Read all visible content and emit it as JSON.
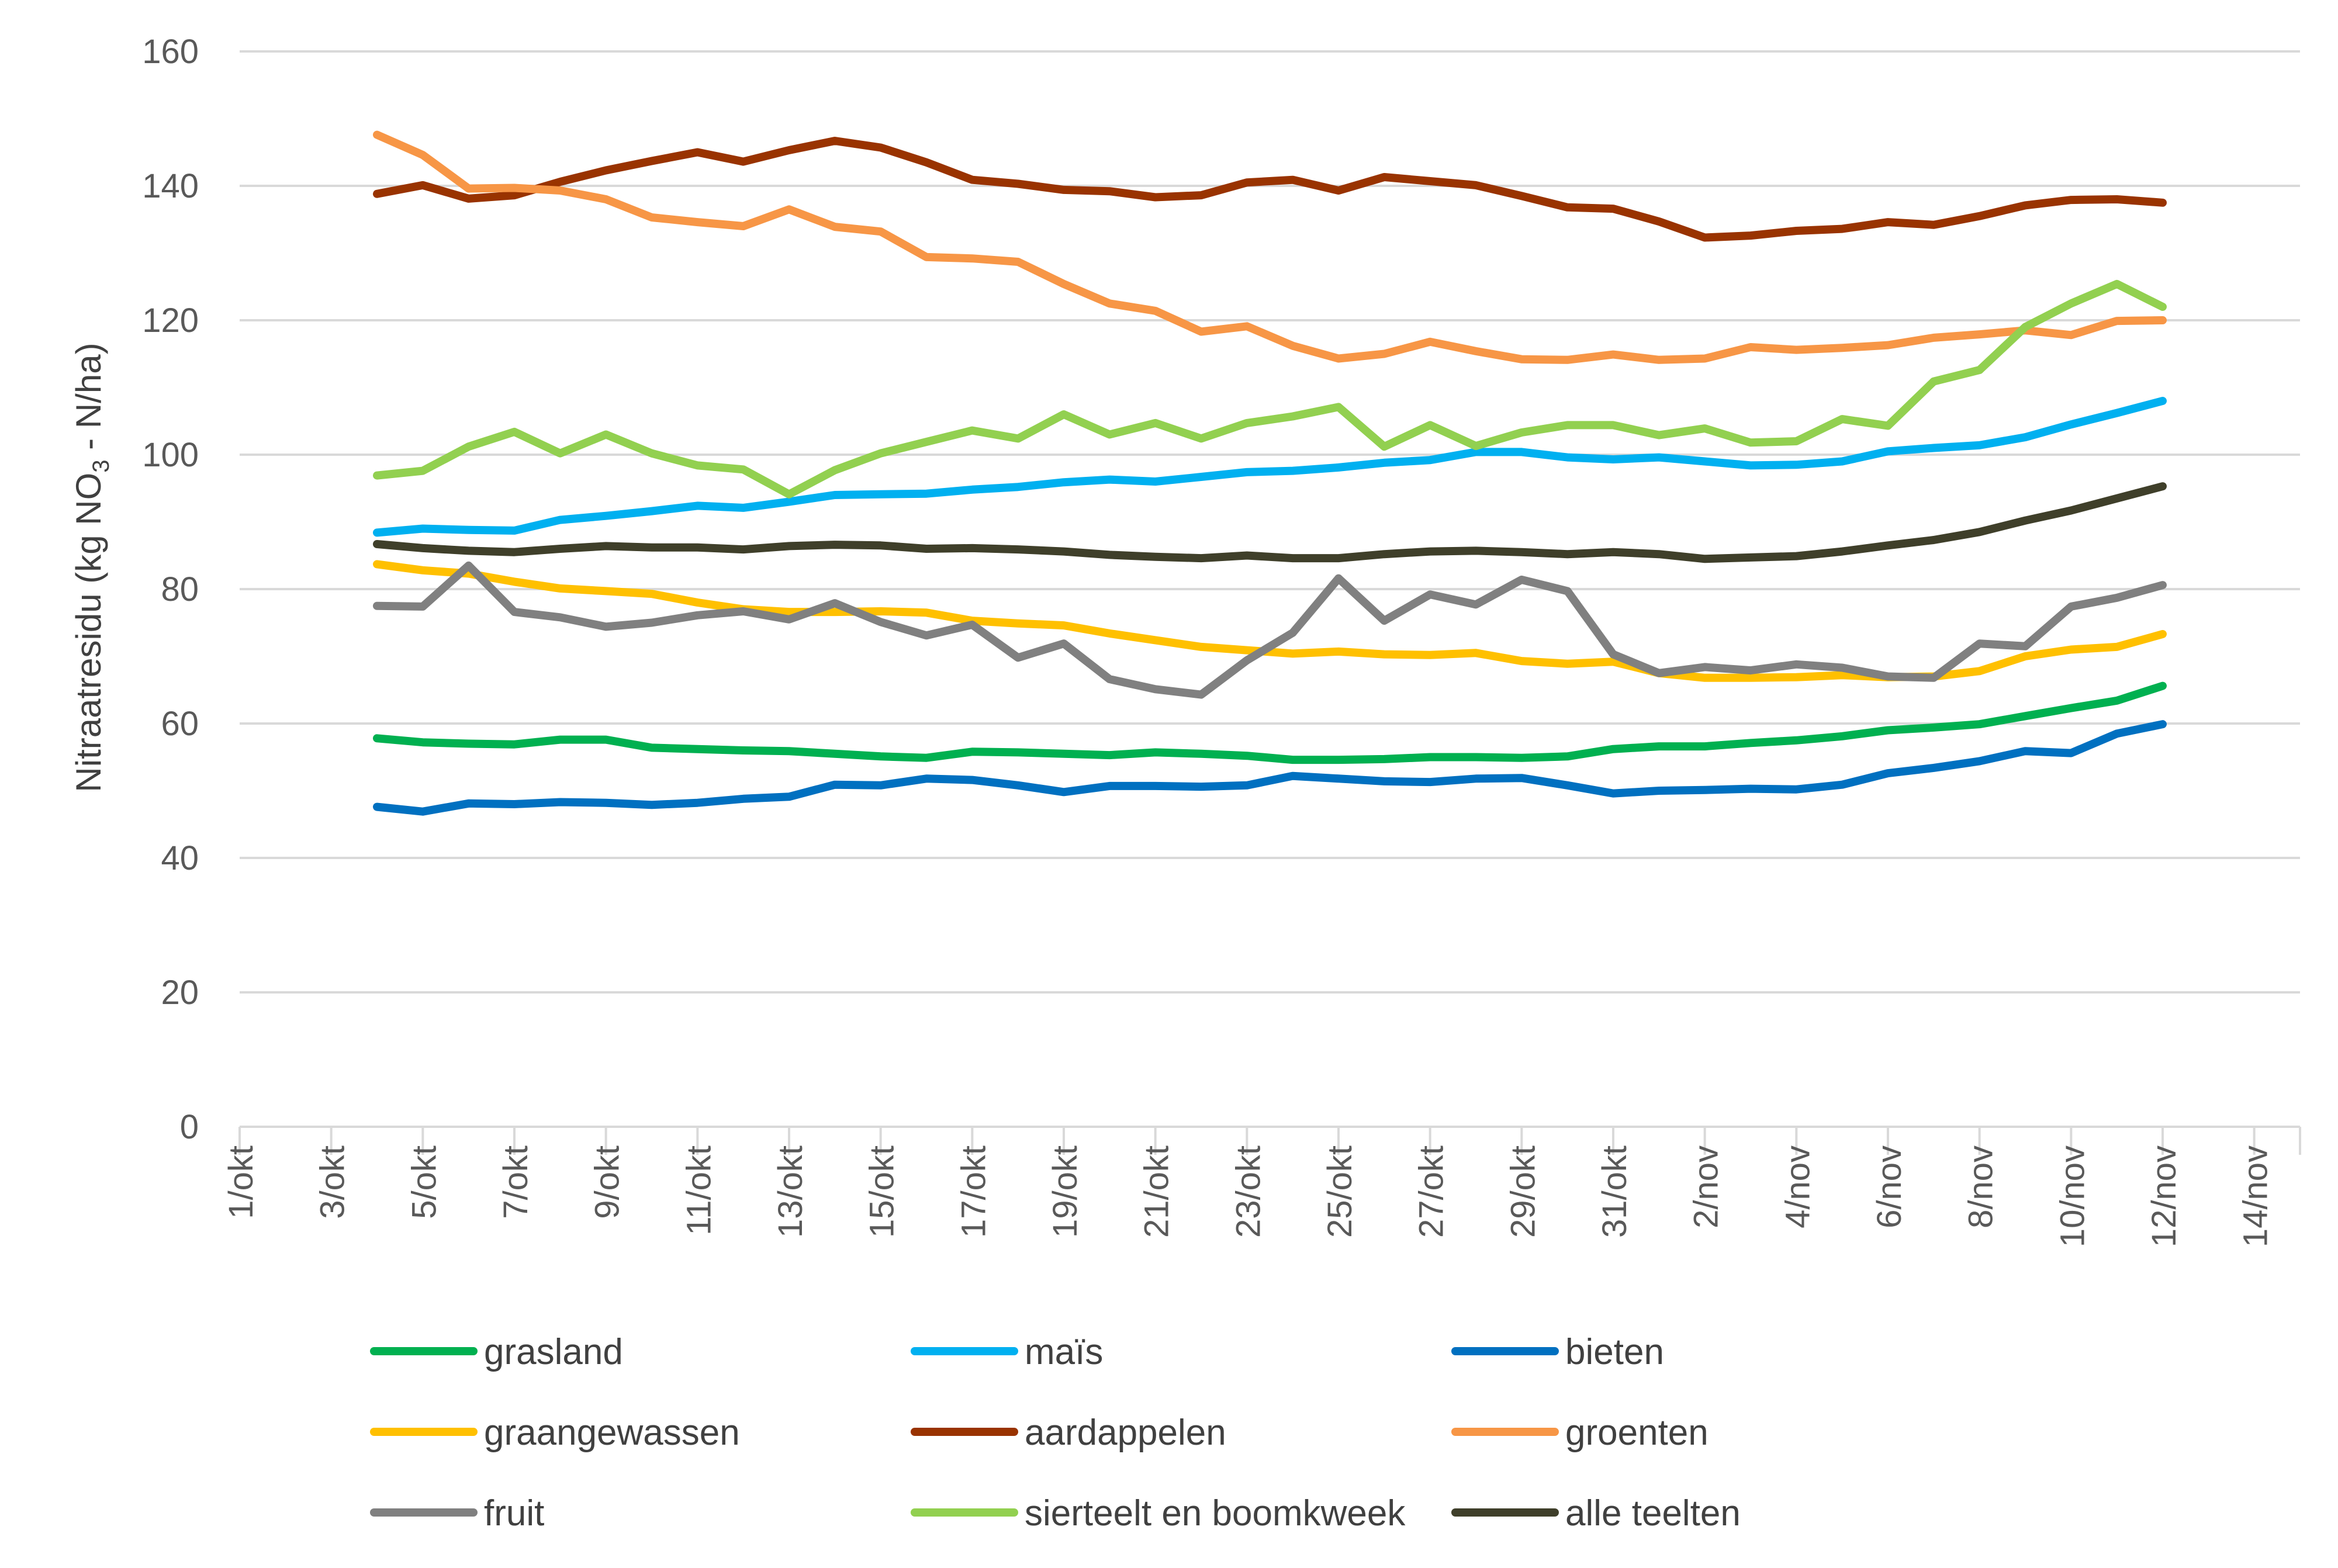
{
  "chart_data": {
    "type": "line",
    "title": "",
    "xlabel": "",
    "ylabel": "Nitraatresidu (kg NO3 - N/ha)",
    "ylabel_parts": {
      "before": "Nitraatresidu (kg NO",
      "sub": "3",
      "after": " - N/ha)"
    },
    "ylim": [
      0,
      160
    ],
    "yticks": [
      0,
      20,
      40,
      60,
      80,
      100,
      120,
      140,
      160
    ],
    "x_range_days": [
      1,
      46
    ],
    "xticks": [
      {
        "day": 1,
        "label": "1/okt"
      },
      {
        "day": 3,
        "label": "3/okt"
      },
      {
        "day": 5,
        "label": "5/okt"
      },
      {
        "day": 7,
        "label": "7/okt"
      },
      {
        "day": 9,
        "label": "9/okt"
      },
      {
        "day": 11,
        "label": "11/okt"
      },
      {
        "day": 13,
        "label": "13/okt"
      },
      {
        "day": 15,
        "label": "15/okt"
      },
      {
        "day": 17,
        "label": "17/okt"
      },
      {
        "day": 19,
        "label": "19/okt"
      },
      {
        "day": 21,
        "label": "21/okt"
      },
      {
        "day": 23,
        "label": "23/okt"
      },
      {
        "day": 25,
        "label": "25/okt"
      },
      {
        "day": 27,
        "label": "27/okt"
      },
      {
        "day": 29,
        "label": "29/okt"
      },
      {
        "day": 31,
        "label": "31/okt"
      },
      {
        "day": 33,
        "label": "2/nov"
      },
      {
        "day": 35,
        "label": "4/nov"
      },
      {
        "day": 37,
        "label": "6/nov"
      },
      {
        "day": 39,
        "label": "8/nov"
      },
      {
        "day": 41,
        "label": "10/nov"
      },
      {
        "day": 43,
        "label": "12/nov"
      },
      {
        "day": 45,
        "label": "14/nov"
      }
    ],
    "x_days_start": 4,
    "legend_position": "bottom",
    "series": [
      {
        "name": "grasland",
        "color": "#00B050",
        "values": [
          57.8,
          57.2,
          57.0,
          56.9,
          57.6,
          57.6,
          56.4,
          56.2,
          56.0,
          55.9,
          55.5,
          55.1,
          54.9,
          55.8,
          55.7,
          55.5,
          55.3,
          55.7,
          55.5,
          55.2,
          54.6,
          54.6,
          54.7,
          55.0,
          55.0,
          54.9,
          55.1,
          56.2,
          56.6,
          56.6,
          57.1,
          57.5,
          58.1,
          59.0,
          59.4,
          59.9,
          61.1,
          62.3,
          63.4,
          65.6
        ]
      },
      {
        "name": "maïs",
        "color": "#00B0F0",
        "values": [
          88.4,
          89.0,
          88.8,
          88.7,
          90.3,
          90.9,
          91.6,
          92.4,
          92.1,
          93.0,
          94.0,
          94.1,
          94.2,
          94.8,
          95.2,
          95.9,
          96.3,
          96.0,
          96.7,
          97.4,
          97.6,
          98.1,
          98.8,
          99.2,
          100.4,
          100.4,
          99.6,
          99.3,
          99.6,
          99.0,
          98.4,
          98.5,
          99.0,
          100.5,
          101.0,
          101.4,
          102.6,
          104.5,
          106.2,
          108.0
        ]
      },
      {
        "name": "bieten",
        "color": "#0070C0",
        "values": [
          47.6,
          46.9,
          48.1,
          48.0,
          48.3,
          48.2,
          47.9,
          48.2,
          48.8,
          49.1,
          50.9,
          50.8,
          51.8,
          51.6,
          50.8,
          49.8,
          50.7,
          50.7,
          50.6,
          50.8,
          52.2,
          51.8,
          51.4,
          51.3,
          51.8,
          51.9,
          50.8,
          49.6,
          50.0,
          50.1,
          50.3,
          50.2,
          50.9,
          52.6,
          53.4,
          54.4,
          55.9,
          55.6,
          58.5,
          59.9
        ]
      },
      {
        "name": "graangewassen",
        "color": "#FFC000",
        "values": [
          83.7,
          82.8,
          82.3,
          81.1,
          80.1,
          79.7,
          79.3,
          78.0,
          77.0,
          76.6,
          76.6,
          76.7,
          76.5,
          75.3,
          74.9,
          74.6,
          73.4,
          72.4,
          71.4,
          70.9,
          70.4,
          70.7,
          70.3,
          70.2,
          70.5,
          69.3,
          68.9,
          69.2,
          67.5,
          66.8,
          66.8,
          66.9,
          67.2,
          66.9,
          67.0,
          67.8,
          70.0,
          71.0,
          71.4,
          73.3
        ]
      },
      {
        "name": "aardappelen",
        "color": "#993300",
        "values": [
          138.8,
          140.1,
          138.1,
          138.6,
          140.6,
          142.3,
          143.7,
          145.0,
          143.6,
          145.3,
          146.7,
          145.7,
          143.5,
          140.9,
          140.3,
          139.4,
          139.2,
          138.3,
          138.6,
          140.5,
          140.9,
          139.3,
          141.3,
          140.7,
          140.1,
          138.5,
          136.8,
          136.6,
          134.7,
          132.3,
          132.6,
          133.3,
          133.6,
          134.6,
          134.2,
          135.5,
          137.1,
          137.9,
          138.0,
          137.5
        ]
      },
      {
        "name": "groenten",
        "color": "#F79646",
        "values": [
          147.6,
          144.6,
          139.6,
          139.7,
          139.3,
          138.0,
          135.3,
          134.6,
          134.0,
          136.5,
          133.9,
          133.2,
          129.4,
          129.2,
          128.7,
          125.4,
          122.5,
          121.4,
          118.3,
          119.1,
          116.2,
          114.3,
          115.0,
          116.8,
          115.4,
          114.2,
          114.1,
          114.9,
          114.1,
          114.3,
          116.0,
          115.6,
          115.9,
          116.3,
          117.4,
          117.9,
          118.5,
          117.8,
          119.9,
          120.0
        ]
      },
      {
        "name": "fruit",
        "color": "#808080",
        "values": [
          77.5,
          77.4,
          83.5,
          76.6,
          75.8,
          74.4,
          75.0,
          76.1,
          76.7,
          75.5,
          77.9,
          75.1,
          73.1,
          74.7,
          69.8,
          71.9,
          66.6,
          65.1,
          64.3,
          69.4,
          73.5,
          81.6,
          75.3,
          79.2,
          77.7,
          81.4,
          79.7,
          70.3,
          67.5,
          68.4,
          67.9,
          68.8,
          68.3,
          67.0,
          66.8,
          71.9,
          71.5,
          77.4,
          78.7,
          80.6
        ]
      },
      {
        "name": "sierteelt en boomkweek",
        "color": "#92D050",
        "values": [
          96.9,
          97.6,
          101.2,
          103.4,
          100.2,
          103.0,
          100.2,
          98.4,
          97.8,
          94.1,
          97.7,
          100.2,
          101.9,
          103.6,
          102.4,
          106.0,
          103.0,
          104.7,
          102.4,
          104.7,
          105.7,
          107.1,
          101.2,
          104.4,
          101.3,
          103.3,
          104.4,
          104.4,
          102.9,
          103.9,
          101.8,
          102.0,
          105.3,
          104.3,
          110.9,
          112.6,
          119.0,
          122.5,
          125.4,
          122.0
        ]
      },
      {
        "name": "alle teelten",
        "color": "#3F3F2A",
        "values": [
          86.7,
          86.1,
          85.7,
          85.5,
          86.0,
          86.4,
          86.2,
          86.2,
          85.9,
          86.4,
          86.6,
          86.5,
          86.0,
          86.1,
          85.9,
          85.6,
          85.1,
          84.8,
          84.6,
          85.0,
          84.6,
          84.6,
          85.2,
          85.6,
          85.7,
          85.5,
          85.2,
          85.5,
          85.2,
          84.5,
          84.7,
          84.9,
          85.6,
          86.5,
          87.3,
          88.5,
          90.2,
          91.7,
          93.5,
          95.3
        ]
      }
    ]
  }
}
